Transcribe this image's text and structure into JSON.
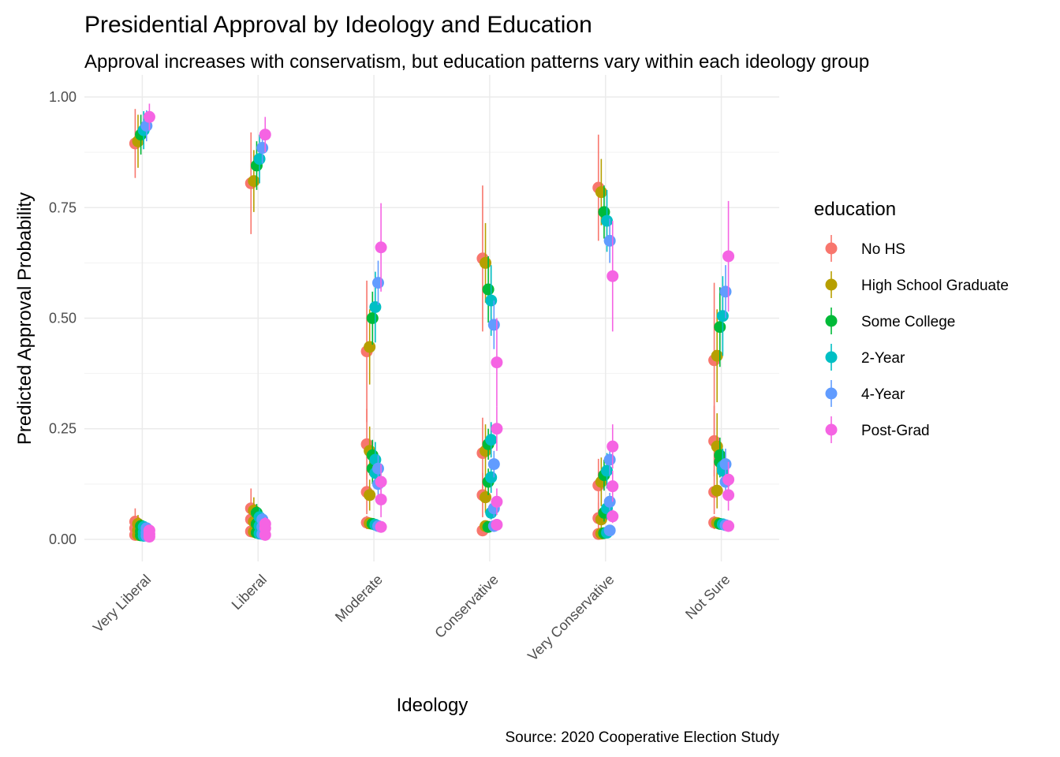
{
  "chart_data": {
    "type": "dodged-point-errorbar",
    "title": "Presidential Approval by Ideology and Education",
    "subtitle": "Approval increases with conservatism, but education patterns vary within each ideology group",
    "x_label": "Ideology",
    "y_label": "Predicted Approval Probability",
    "caption": "Source: 2020 Cooperative Election Study",
    "legend_title": "education",
    "categories": [
      "Very Liberal",
      "Liberal",
      "Moderate",
      "Conservative",
      "Very Conservative",
      "Not Sure"
    ],
    "ylim": [
      -0.05,
      1.05
    ],
    "yticks": [
      {
        "value": 0,
        "label": "0.00"
      },
      {
        "value": 0.25,
        "label": "0.25"
      },
      {
        "value": 0.5,
        "label": "0.50"
      },
      {
        "value": 0.75,
        "label": "0.75"
      },
      {
        "value": 1,
        "label": "1.00"
      }
    ],
    "y_minor_ticks": [
      0.125,
      0.375,
      0.625,
      0.875
    ],
    "grid": true,
    "series": [
      {
        "name": "No HS",
        "color": "#F8766D",
        "values": [
          [
            0.895,
            0.04,
            0.025,
            0.01
          ],
          [
            0.805,
            0.07,
            0.045,
            0.018
          ],
          [
            0.425,
            0.215,
            0.107,
            0.038
          ],
          [
            0.635,
            0.195,
            0.1,
            0.02
          ],
          [
            0.795,
            0.122,
            0.048,
            0.012
          ],
          [
            0.405,
            0.222,
            0.107,
            0.038
          ]
        ],
        "errors": [
          [
            0.078,
            0.03,
            0.02,
            0.01
          ],
          [
            0.115,
            0.045,
            0.03,
            0.012
          ],
          [
            0.16,
            0.08,
            0.05,
            0.015
          ],
          [
            0.165,
            0.08,
            0.05,
            0.01
          ],
          [
            0.12,
            0.06,
            0.035,
            0.01
          ],
          [
            0.175,
            0.08,
            0.05,
            0.015
          ]
        ]
      },
      {
        "name": "High School Graduate",
        "color": "#B79F00",
        "values": [
          [
            0.9,
            0.035,
            0.02,
            0.01
          ],
          [
            0.81,
            0.065,
            0.04,
            0.017
          ],
          [
            0.435,
            0.2,
            0.1,
            0.036
          ],
          [
            0.625,
            0.2,
            0.095,
            0.03
          ],
          [
            0.785,
            0.13,
            0.045,
            0.013
          ],
          [
            0.415,
            0.21,
            0.11,
            0.037
          ]
        ],
        "errors": [
          [
            0.06,
            0.02,
            0.015,
            0.008
          ],
          [
            0.07,
            0.03,
            0.02,
            0.01
          ],
          [
            0.085,
            0.055,
            0.035,
            0.01
          ],
          [
            0.09,
            0.06,
            0.035,
            0.01
          ],
          [
            0.075,
            0.055,
            0.025,
            0.008
          ],
          [
            0.105,
            0.075,
            0.04,
            0.012
          ]
        ]
      },
      {
        "name": "Some College",
        "color": "#00BA38",
        "values": [
          [
            0.915,
            0.03,
            0.018,
            0.009
          ],
          [
            0.845,
            0.06,
            0.035,
            0.015
          ],
          [
            0.5,
            0.19,
            0.16,
            0.035
          ],
          [
            0.565,
            0.215,
            0.13,
            0.028
          ],
          [
            0.74,
            0.145,
            0.06,
            0.014
          ],
          [
            0.48,
            0.19,
            0.175,
            0.035
          ]
        ],
        "errors": [
          [
            0.045,
            0.015,
            0.01,
            0.006
          ],
          [
            0.055,
            0.02,
            0.015,
            0.008
          ],
          [
            0.06,
            0.035,
            0.035,
            0.008
          ],
          [
            0.075,
            0.035,
            0.03,
            0.008
          ],
          [
            0.06,
            0.035,
            0.02,
            0.006
          ],
          [
            0.09,
            0.04,
            0.035,
            0.008
          ]
        ]
      },
      {
        "name": "2-Year",
        "color": "#00BFC4",
        "values": [
          [
            0.925,
            0.028,
            0.016,
            0.008
          ],
          [
            0.86,
            0.05,
            0.03,
            0.013
          ],
          [
            0.525,
            0.18,
            0.15,
            0.033
          ],
          [
            0.54,
            0.225,
            0.14,
            0.06
          ],
          [
            0.72,
            0.155,
            0.07,
            0.015
          ],
          [
            0.505,
            0.165,
            0.155,
            0.034
          ]
        ],
        "errors": [
          [
            0.043,
            0.015,
            0.01,
            0.006
          ],
          [
            0.055,
            0.02,
            0.015,
            0.007
          ],
          [
            0.08,
            0.04,
            0.035,
            0.008
          ],
          [
            0.08,
            0.04,
            0.035,
            0.015
          ],
          [
            0.07,
            0.04,
            0.025,
            0.006
          ],
          [
            0.09,
            0.04,
            0.035,
            0.008
          ]
        ]
      },
      {
        "name": "4-Year",
        "color": "#619CFF",
        "values": [
          [
            0.935,
            0.025,
            0.015,
            0.008
          ],
          [
            0.885,
            0.045,
            0.028,
            0.012
          ],
          [
            0.58,
            0.16,
            0.125,
            0.03
          ],
          [
            0.485,
            0.17,
            0.07,
            0.03
          ],
          [
            0.675,
            0.18,
            0.085,
            0.02
          ],
          [
            0.56,
            0.17,
            0.13,
            0.032
          ]
        ],
        "errors": [
          [
            0.035,
            0.012,
            0.008,
            0.005
          ],
          [
            0.035,
            0.015,
            0.01,
            0.006
          ],
          [
            0.05,
            0.03,
            0.025,
            0.007
          ],
          [
            0.055,
            0.03,
            0.02,
            0.007
          ],
          [
            0.05,
            0.035,
            0.02,
            0.006
          ],
          [
            0.06,
            0.035,
            0.03,
            0.007
          ]
        ]
      },
      {
        "name": "Post-Grad",
        "color": "#F564E3",
        "values": [
          [
            0.955,
            0.02,
            0.012,
            0.006
          ],
          [
            0.915,
            0.035,
            0.025,
            0.01
          ],
          [
            0.66,
            0.13,
            0.09,
            0.028
          ],
          [
            0.4,
            0.25,
            0.085,
            0.033
          ],
          [
            0.595,
            0.21,
            0.12,
            0.052
          ],
          [
            0.64,
            0.135,
            0.1,
            0.03
          ]
        ],
        "errors": [
          [
            0.03,
            0.012,
            0.008,
            0.005
          ],
          [
            0.04,
            0.015,
            0.01,
            0.006
          ],
          [
            0.1,
            0.04,
            0.04,
            0.008
          ],
          [
            0.1,
            0.05,
            0.03,
            0.01
          ],
          [
            0.125,
            0.05,
            0.035,
            0.015
          ],
          [
            0.125,
            0.04,
            0.035,
            0.008
          ]
        ]
      }
    ]
  }
}
